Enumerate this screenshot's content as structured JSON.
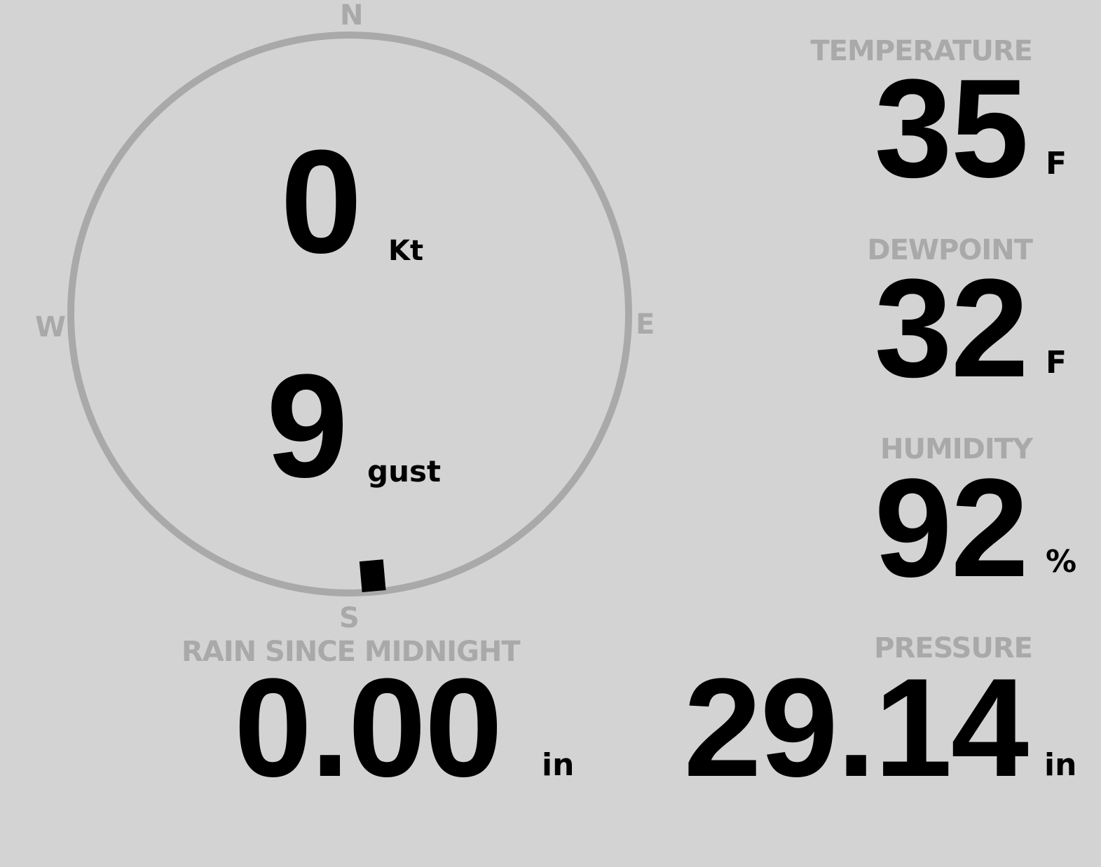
{
  "colors": {
    "background": "#d3d3d3",
    "dim": "#a9a9a9",
    "value": "#000000"
  },
  "compass": {
    "north": "N",
    "south": "S",
    "east": "E",
    "west": "W",
    "wind_direction_deg": 175
  },
  "wind": {
    "speed": "0",
    "speed_unit": "Kt",
    "gust": "9",
    "gust_unit": "gust"
  },
  "temperature": {
    "label": "TEMPERATURE",
    "value": "35",
    "unit": "F"
  },
  "dewpoint": {
    "label": "DEWPOINT",
    "value": "32",
    "unit": "F"
  },
  "humidity": {
    "label": "HUMIDITY",
    "value": "92",
    "unit": "%"
  },
  "rain": {
    "label": "RAIN SINCE MIDNIGHT",
    "value": "0.00",
    "unit": "in"
  },
  "pressure": {
    "label": "PRESSURE",
    "value": "29.14",
    "unit": "in"
  }
}
